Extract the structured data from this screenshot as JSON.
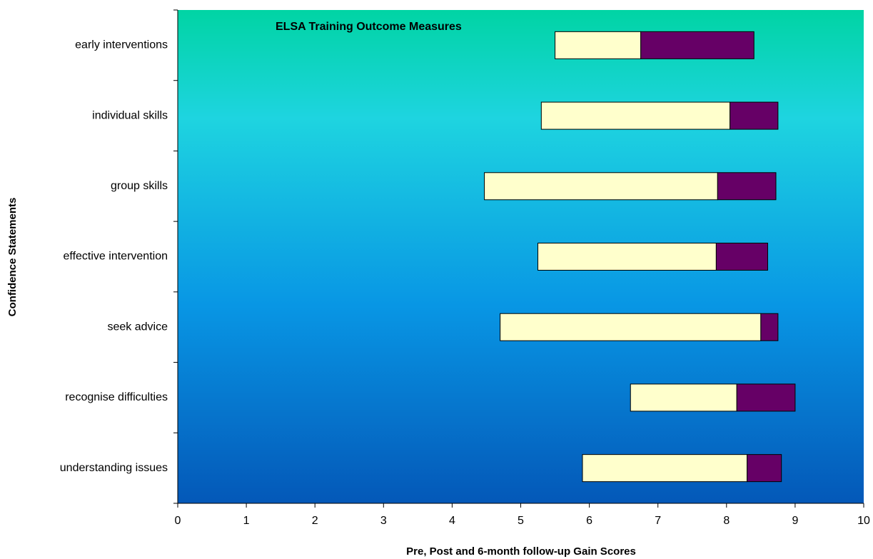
{
  "chart_data": {
    "type": "stacked-bar-horizontal",
    "title": "ELSA Training Outcome Measures",
    "xlabel": "Pre, Post and 6-month follow-up Gain Scores",
    "ylabel": "Confidence Statements",
    "categories": [
      "early interventions",
      "individual skills",
      "group skills",
      "effective intervention",
      "seek advice ",
      "recognise difficulties",
      "understanding issues"
    ],
    "series": [
      {
        "color": "none",
        "values": [
          5.5,
          5.3,
          4.47,
          5.25,
          4.7,
          6.6,
          5.9
        ]
      },
      {
        "color": "#ffffcc",
        "values": [
          1.25,
          2.75,
          3.4,
          2.6,
          3.8,
          1.55,
          2.4
        ]
      },
      {
        "color": "#660066",
        "values": [
          1.65,
          0.7,
          0.85,
          0.75,
          0.25,
          0.85,
          0.5
        ]
      }
    ],
    "xlim": [
      0,
      10
    ],
    "xticks": [
      0,
      1,
      2,
      3,
      4,
      5,
      6,
      7,
      8,
      9,
      10
    ]
  }
}
